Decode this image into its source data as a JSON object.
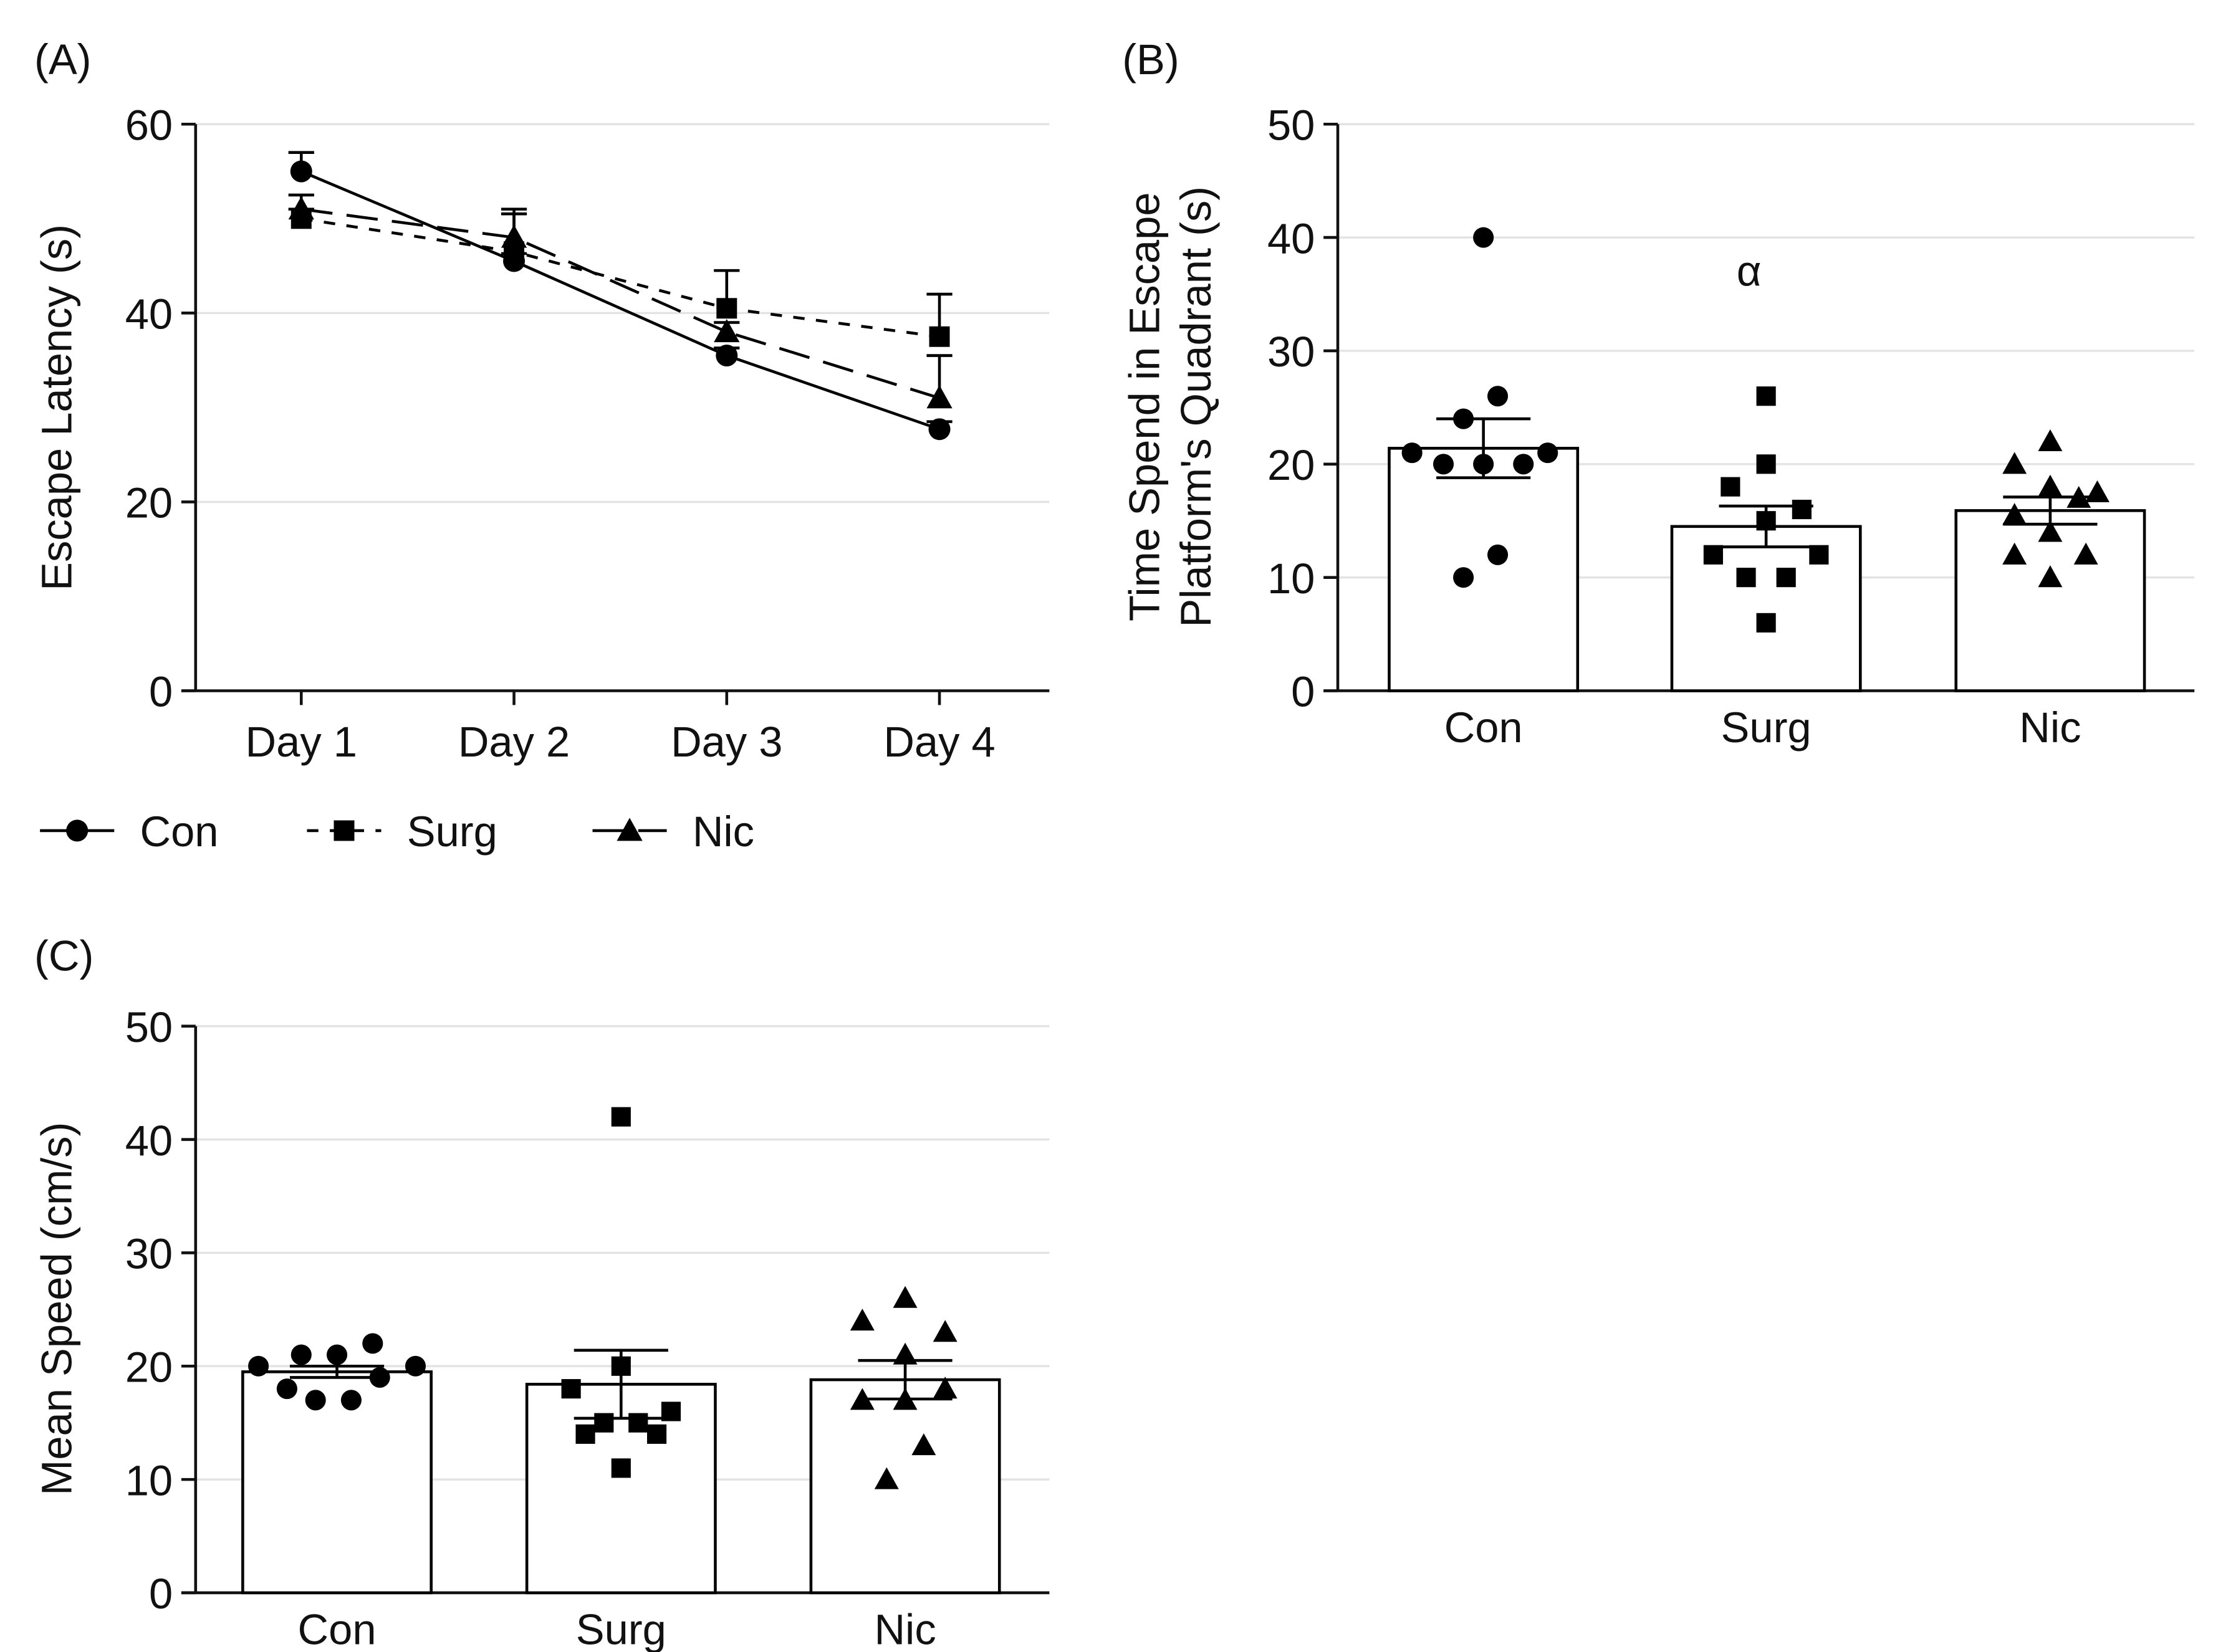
{
  "chart_data": [
    {
      "panel": "(A)",
      "type": "line",
      "ylabel": "Escape Latency (s)",
      "ylim": [
        0,
        60
      ],
      "yticks": [
        0,
        20,
        40,
        60
      ],
      "grid": true,
      "categories": [
        "Day 1",
        "Day 2",
        "Day 3",
        "Day 4"
      ],
      "legend_position": "bottom",
      "series": [
        {
          "name": "Con",
          "marker": "circle",
          "dash": "solid",
          "values": [
            55,
            45.5,
            35.5,
            27.7
          ],
          "sem": [
            2,
            0.8,
            0.8,
            0.8
          ]
        },
        {
          "name": "Surg",
          "marker": "square",
          "dash": "short",
          "values": [
            50,
            46.5,
            40.5,
            37.5
          ],
          "sem": [
            1,
            4.5,
            4,
            4.5
          ]
        },
        {
          "name": "Nic",
          "marker": "triangle",
          "dash": "long",
          "values": [
            51,
            48,
            38,
            31
          ],
          "sem": [
            1.5,
            2.5,
            1,
            4.5
          ]
        }
      ]
    },
    {
      "panel": "(B)",
      "type": "bar",
      "ylabel": [
        "Time Spend in Escape",
        "Platform's Quadrant (s)"
      ],
      "ylim": [
        0,
        50
      ],
      "yticks": [
        0,
        10,
        20,
        30,
        40,
        50
      ],
      "grid": true,
      "categories": [
        "Con",
        "Surg",
        "Nic"
      ],
      "annotation": {
        "text": "α",
        "category": "Surg",
        "y": 37
      },
      "series": [
        {
          "name": "Con",
          "marker": "circle",
          "mean": 21.4,
          "sem": 2.6,
          "points": [
            40,
            26,
            24,
            21,
            21,
            20,
            20,
            20,
            12,
            10
          ]
        },
        {
          "name": "Surg",
          "marker": "square",
          "mean": 14.5,
          "sem": 1.8,
          "points": [
            26,
            20,
            18,
            16,
            15,
            12,
            12,
            10,
            10,
            6
          ]
        },
        {
          "name": "Nic",
          "marker": "triangle",
          "mean": 15.9,
          "sem": 1.2,
          "points": [
            22,
            20,
            18,
            17.5,
            17,
            15.5,
            14,
            12,
            12,
            10
          ]
        }
      ]
    },
    {
      "panel": "(C)",
      "type": "bar",
      "ylabel": "Mean Speed (cm/s)",
      "ylim": [
        0,
        50
      ],
      "yticks": [
        0,
        10,
        20,
        30,
        40,
        50
      ],
      "grid": true,
      "categories": [
        "Con",
        "Surg",
        "Nic"
      ],
      "series": [
        {
          "name": "Con",
          "marker": "circle",
          "mean": 19.5,
          "sem": 0.5,
          "points": [
            20,
            21,
            21,
            22,
            20,
            19,
            18,
            17,
            17
          ]
        },
        {
          "name": "Surg",
          "marker": "square",
          "mean": 18.4,
          "sem": 3,
          "points": [
            42,
            20,
            18,
            16,
            15,
            15,
            14,
            14,
            11
          ]
        },
        {
          "name": "Nic",
          "marker": "triangle",
          "mean": 18.8,
          "sem": 1.7,
          "points": [
            26,
            24,
            23,
            21,
            18,
            17,
            17,
            13,
            10
          ]
        }
      ]
    }
  ]
}
